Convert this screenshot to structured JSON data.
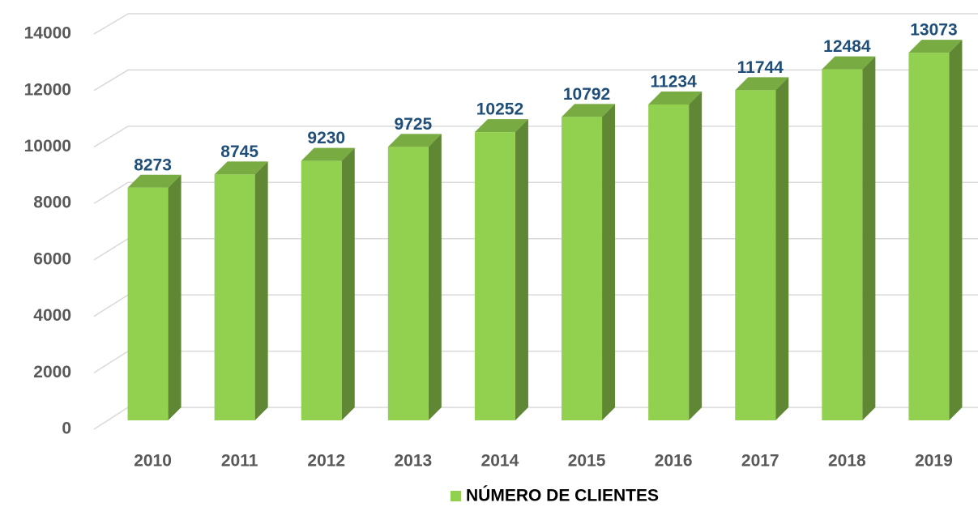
{
  "chart_data": {
    "type": "bar3d",
    "categories": [
      "2010",
      "2011",
      "2012",
      "2013",
      "2014",
      "2015",
      "2016",
      "2017",
      "2018",
      "2019"
    ],
    "series": [
      {
        "name": "NÚMERO DE CLIENTES",
        "color": "#92d050",
        "values": [
          8273,
          8745,
          9230,
          9725,
          10252,
          10792,
          11234,
          11744,
          12484,
          13073
        ]
      }
    ],
    "ylim": [
      0,
      14000
    ],
    "yticks": [
      0,
      2000,
      4000,
      6000,
      8000,
      10000,
      12000,
      14000
    ],
    "grid": true,
    "legend": "bottom"
  }
}
